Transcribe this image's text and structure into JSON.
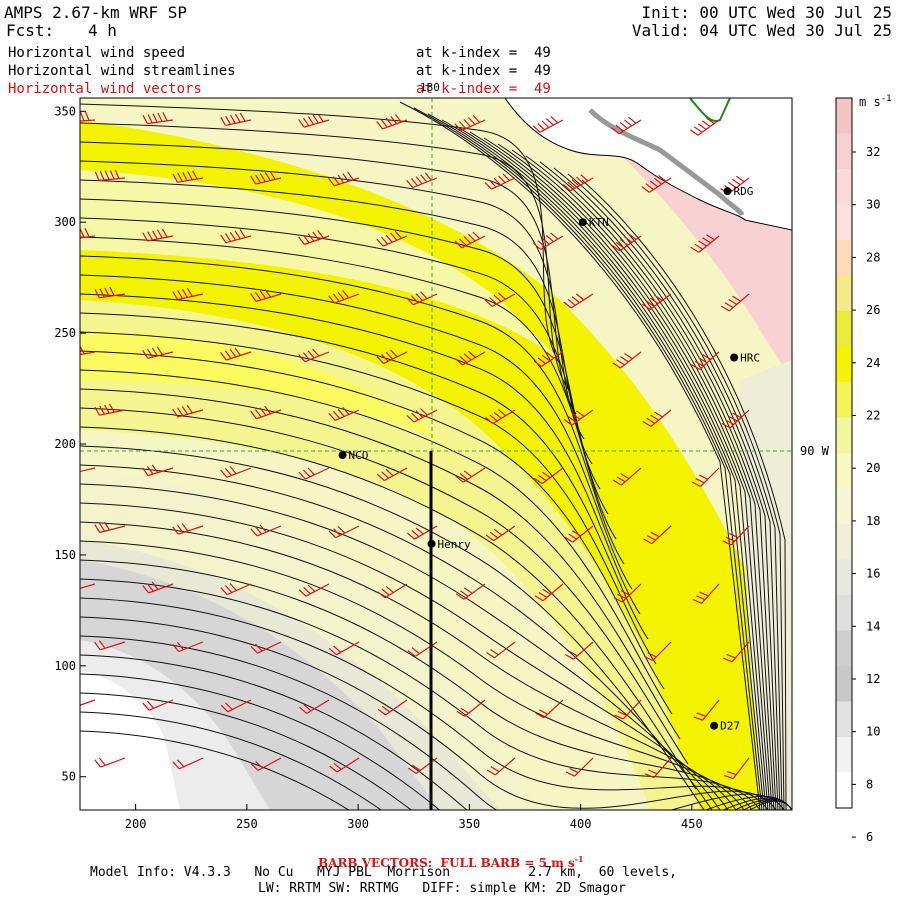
{
  "header": {
    "model_title": "AMPS 2.67-km WRF SP",
    "init": "Init: 00 UTC Wed 30 Jul 25",
    "fcst_label": "Fcst:",
    "fcst_value": "4 h",
    "valid": "Valid: 04 UTC Wed 30 Jul 25",
    "fields": [
      {
        "name": "Horizontal wind speed",
        "level": "at k-index =  49",
        "color": "#000000"
      },
      {
        "name": "Horizontal wind streamlines",
        "level": "at k-index =  49",
        "color": "#000000"
      },
      {
        "name": "Horizontal wind vectors",
        "level": "at k-index =  49",
        "color": "#e01010"
      }
    ]
  },
  "map": {
    "x_ticks": [
      "200",
      "250",
      "300",
      "350",
      "400",
      "450"
    ],
    "y_ticks": [
      "350",
      "300",
      "250",
      "200",
      "150",
      "100",
      "50"
    ],
    "x_tick_values": [
      200,
      250,
      300,
      350,
      400,
      450
    ],
    "y_tick_values": [
      350,
      300,
      250,
      200,
      150,
      100,
      50
    ],
    "x_range": [
      175,
      495
    ],
    "y_range": [
      35,
      356
    ],
    "meridian_label": "180",
    "parallel_label": "90 W",
    "stations": [
      {
        "id": "KTN",
        "x": 401,
        "y": 300
      },
      {
        "id": "RDG",
        "x": 466,
        "y": 314
      },
      {
        "id": "HRC",
        "x": 469,
        "y": 239
      },
      {
        "id": "NCO",
        "x": 293,
        "y": 195
      },
      {
        "id": "Henry",
        "x": 333,
        "y": 155
      },
      {
        "id": "D27",
        "x": 460,
        "y": 73
      }
    ]
  },
  "colorbar": {
    "unit": "m s",
    "unit_exp": "-1",
    "tick_labels": [
      "32",
      "30",
      "28",
      "26",
      "24",
      "22",
      "20",
      "18",
      "16",
      "14",
      "12",
      "10",
      "8",
      "6"
    ],
    "colors": [
      "#f5c4c4",
      "#f8d0d0",
      "#fadada",
      "#fbe1dc",
      "#fcdcb8",
      "#f5e98a",
      "#ecea3a",
      "#f4f400",
      "#f4f45a",
      "#f5f5a0",
      "#f7f7c2",
      "#f6f6d2",
      "#f0f0da",
      "#e8e8e0",
      "#dedede",
      "#cfcfcf",
      "#c8c8c8",
      "#e2e2e2",
      "#f2f2f2",
      "#ffffff"
    ]
  },
  "footer": {
    "barb_note": "BARB VECTORS:  FULL BARB = 5 m s",
    "barb_exp": "-1",
    "line1": "Model Info: V4.3.3   No Cu   MYJ PBL  Morrison          2.7 km,  60 levels,",
    "line2": "LW: RRTM SW: RRTMG   DIFF: simple KM: 2D Smagor"
  }
}
